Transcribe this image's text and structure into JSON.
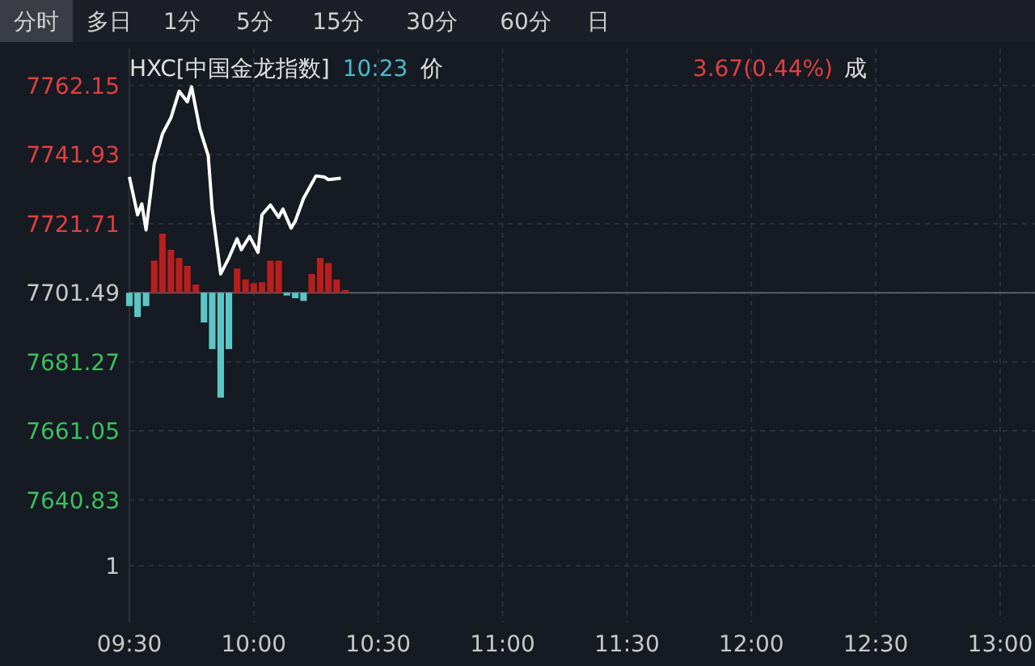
{
  "chart_data": {
    "type": "line",
    "title": "HXC[中国金龙指数]",
    "subtitle": "10:23",
    "annotations": [
      "分时",
      "多日",
      "1分",
      "5分",
      "15分",
      "30分",
      "60分",
      "日",
      "价",
      "3.67(0.44%)",
      "成",
      "1"
    ],
    "xlim": [
      9.5,
      13.14
    ],
    "ylim": [
      7605,
      7773
    ],
    "xticks": [
      {
        "value": 9.5,
        "label": "09:30"
      },
      {
        "value": 10,
        "label": "10:00"
      },
      {
        "value": 10.5,
        "label": "10:30"
      },
      {
        "value": 11,
        "label": "11:00"
      },
      {
        "value": 11.5,
        "label": "11:30"
      },
      {
        "value": 12,
        "label": "12:00"
      },
      {
        "value": 12.5,
        "label": "12:30"
      },
      {
        "value": 13,
        "label": "13:00"
      }
    ],
    "yticks": [
      7762.15,
      7741.93,
      7721.71,
      7701.49,
      7681.27,
      7661.05,
      7640.83
    ],
    "grid": true,
    "ref_lines": [
      {
        "axis": "y",
        "value": 7701.49,
        "color": "#5a5e66"
      }
    ],
    "series": [
      {
        "type": "bar",
        "x": [
          9.5,
          9.533,
          9.567,
          9.6,
          9.633,
          9.667,
          9.7,
          9.733,
          9.767,
          9.8,
          9.833,
          9.867,
          9.9,
          9.933,
          9.967,
          10,
          10.033,
          10.067,
          10.1,
          10.133,
          10.167,
          10.2,
          10.233,
          10.267,
          10.3,
          10.333,
          10.367
        ],
        "base": [
          7701.49,
          7701.49,
          7701.49,
          7701.49,
          7701.49,
          7701.49,
          7701.49,
          7701.49,
          7701.49,
          7701.49,
          7701.49,
          7701.49,
          7701.49,
          7701.49,
          7701.49,
          7701.49,
          7701.49,
          7701.49,
          7701.49,
          7701.49,
          7701.49,
          7701.49,
          7701.49,
          7701.49,
          7701.49,
          7701.49,
          7701.49
        ],
        "values": [
          -3.9,
          -7.1,
          -3.9,
          9.4,
          17.3,
          12.6,
          10.2,
          7.9,
          2.4,
          -8.7,
          -16.5,
          -30.7,
          -16.5,
          7.1,
          3.9,
          2.8,
          3.1,
          9.4,
          9.4,
          -0.8,
          -1.6,
          -2.4,
          5.5,
          10.2,
          8.7,
          3.9,
          0.8
        ],
        "colors": [
          "#5cc6c6",
          "#5cc6c6",
          "#5cc6c6",
          "#b81f1c",
          "#b81f1c",
          "#b81f1c",
          "#b81f1c",
          "#b81f1c",
          "#b81f1c",
          "#5cc6c6",
          "#5cc6c6",
          "#5cc6c6",
          "#5cc6c6",
          "#b81f1c",
          "#b81f1c",
          "#b81f1c",
          "#b81f1c",
          "#b81f1c",
          "#b81f1c",
          "#5cc6c6",
          "#5cc6c6",
          "#5cc6c6",
          "#b81f1c",
          "#b81f1c",
          "#b81f1c",
          "#b81f1c",
          "#b81f1c"
        ]
      },
      {
        "color": "#ffffff",
        "x": [
          9.5,
          9.533,
          9.55,
          9.567,
          9.6,
          9.633,
          9.667,
          9.7,
          9.733,
          9.75,
          9.783,
          9.817,
          9.833,
          9.867,
          9.9,
          9.933,
          9.95,
          9.983,
          10.017,
          10.033,
          10.067,
          10.1,
          10.117,
          10.15,
          10.167,
          10.2,
          10.25,
          10.283,
          10.3,
          10.35
        ],
        "values": [
          7735.4,
          7724.3,
          7727.5,
          7719.9,
          7739.3,
          7748,
          7752.7,
          7760.5,
          7757.4,
          7761.8,
          7749.5,
          7741.6,
          7725.9,
          7707,
          7711.7,
          7717.3,
          7714.1,
          7718,
          7713.3,
          7724.3,
          7727.2,
          7723.6,
          7726,
          7720.4,
          7722.5,
          7729.1,
          7735.7,
          7735.4,
          7734.6,
          7735
        ]
      }
    ]
  }
}
